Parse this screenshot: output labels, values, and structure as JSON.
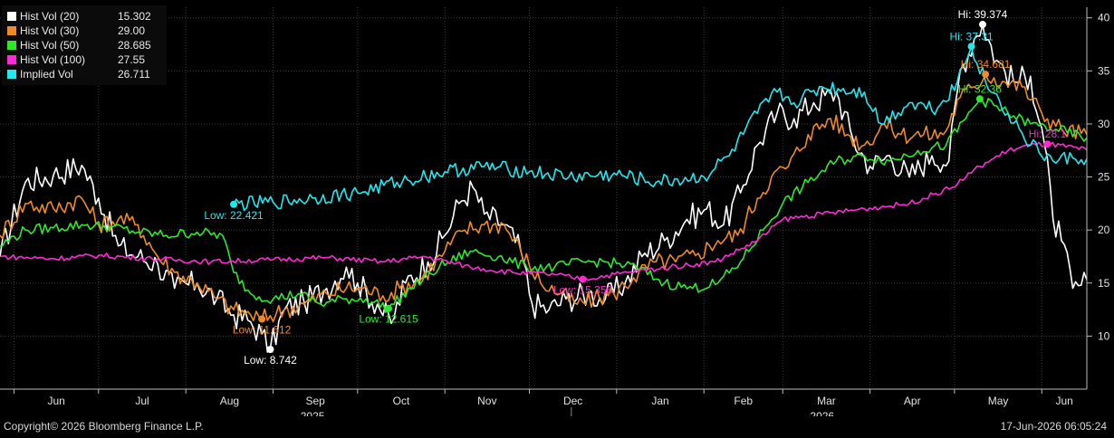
{
  "chart_data": {
    "type": "line",
    "title": "",
    "ylim": [
      5,
      41
    ],
    "yticks": [
      10,
      15,
      20,
      25,
      30,
      35,
      40
    ],
    "xrange": [
      "2025-05-27",
      "2026-06-17"
    ],
    "months": [
      {
        "label": "Jun",
        "date": "2025-06-01"
      },
      {
        "label": "Jul",
        "date": "2025-07-01"
      },
      {
        "label": "Aug",
        "date": "2025-08-01"
      },
      {
        "label": "Sep",
        "date": "2025-09-01"
      },
      {
        "label": "Oct",
        "date": "2025-10-01"
      },
      {
        "label": "Nov",
        "date": "2025-11-01"
      },
      {
        "label": "Dec",
        "date": "2025-12-01"
      },
      {
        "label": "Jan",
        "date": "2026-01-01"
      },
      {
        "label": "Feb",
        "date": "2026-02-01"
      },
      {
        "label": "Mar",
        "date": "2026-03-01"
      },
      {
        "label": "Apr",
        "date": "2026-04-01"
      },
      {
        "label": "May",
        "date": "2026-05-01"
      },
      {
        "label": "Jun",
        "date": "2026-06-01"
      }
    ],
    "years": [
      {
        "label": "2025",
        "date": "2025-09-15"
      },
      {
        "label": "2026",
        "date": "2026-03-15"
      }
    ],
    "grid": true,
    "legend_position": "top-left",
    "series": [
      {
        "name": "Hist Vol (20)",
        "last": "15.302",
        "color": "#ffffff",
        "points": [
          [
            "2025-05-27",
            17.5
          ],
          [
            "2025-06-05",
            24.5
          ],
          [
            "2025-06-15",
            25.2
          ],
          [
            "2025-06-25",
            26.1
          ],
          [
            "2025-07-01",
            23.0
          ],
          [
            "2025-07-08",
            18.5
          ],
          [
            "2025-07-15",
            17.5
          ],
          [
            "2025-07-22",
            16.8
          ],
          [
            "2025-07-28",
            14.5
          ],
          [
            "2025-08-05",
            15.0
          ],
          [
            "2025-08-12",
            13.5
          ],
          [
            "2025-08-18",
            12.0
          ],
          [
            "2025-08-23",
            11.5
          ],
          [
            "2025-08-28",
            10.2
          ],
          [
            "2025-08-31",
            8.742
          ],
          [
            "2025-09-05",
            12.5
          ],
          [
            "2025-09-12",
            13.2
          ],
          [
            "2025-09-20",
            14.5
          ],
          [
            "2025-09-27",
            16.5
          ],
          [
            "2025-10-01",
            15.0
          ],
          [
            "2025-10-08",
            13.0
          ],
          [
            "2025-10-13",
            11.2
          ],
          [
            "2025-10-18",
            15.0
          ],
          [
            "2025-10-26",
            17.0
          ],
          [
            "2025-11-01",
            19.5
          ],
          [
            "2025-11-06",
            22.5
          ],
          [
            "2025-11-11",
            24.0
          ],
          [
            "2025-11-15",
            21.5
          ],
          [
            "2025-11-22",
            20.5
          ],
          [
            "2025-11-28",
            18.0
          ],
          [
            "2025-12-02",
            13.0
          ],
          [
            "2025-12-08",
            12.5
          ],
          [
            "2025-12-14",
            13.5
          ],
          [
            "2025-12-22",
            14.0
          ],
          [
            "2025-12-28",
            13.5
          ],
          [
            "2026-01-04",
            15.0
          ],
          [
            "2026-01-10",
            17.5
          ],
          [
            "2026-01-18",
            19.0
          ],
          [
            "2026-01-26",
            21.0
          ],
          [
            "2026-02-02",
            22.0
          ],
          [
            "2026-02-08",
            20.5
          ],
          [
            "2026-02-14",
            23.5
          ],
          [
            "2026-02-20",
            28.0
          ],
          [
            "2026-02-27",
            31.0
          ],
          [
            "2026-03-05",
            30.5
          ],
          [
            "2026-03-12",
            32.0
          ],
          [
            "2026-03-20",
            33.0
          ],
          [
            "2026-03-26",
            28.5
          ],
          [
            "2026-04-01",
            26.0
          ],
          [
            "2026-04-08",
            27.0
          ],
          [
            "2026-04-15",
            25.0
          ],
          [
            "2026-04-23",
            27.0
          ],
          [
            "2026-04-29",
            26.5
          ],
          [
            "2026-05-03",
            35.0
          ],
          [
            "2026-05-08",
            38.0
          ],
          [
            "2026-05-11",
            39.374
          ],
          [
            "2026-05-16",
            36.0
          ],
          [
            "2026-05-22",
            34.0
          ],
          [
            "2026-05-28",
            34.5
          ],
          [
            "2026-06-02",
            28.0
          ],
          [
            "2026-06-05",
            21.0
          ],
          [
            "2026-06-08",
            19.0
          ],
          [
            "2026-06-12",
            14.5
          ],
          [
            "2026-06-15",
            14.8
          ],
          [
            "2026-06-17",
            15.302
          ]
        ]
      },
      {
        "name": "Hist Vol (30)",
        "last": "29.00",
        "color": "#f08a24",
        "points": [
          [
            "2025-05-27",
            19.5
          ],
          [
            "2025-06-05",
            22.5
          ],
          [
            "2025-06-15",
            22.0
          ],
          [
            "2025-06-25",
            23.0
          ],
          [
            "2025-07-01",
            20.5
          ],
          [
            "2025-07-08",
            21.0
          ],
          [
            "2025-07-15",
            20.5
          ],
          [
            "2025-07-22",
            17.5
          ],
          [
            "2025-07-28",
            16.0
          ],
          [
            "2025-08-05",
            15.0
          ],
          [
            "2025-08-12",
            13.5
          ],
          [
            "2025-08-18",
            12.5
          ],
          [
            "2025-08-24",
            12.0
          ],
          [
            "2025-08-28",
            11.612
          ],
          [
            "2025-09-05",
            12.5
          ],
          [
            "2025-09-12",
            13.0
          ],
          [
            "2025-09-20",
            14.0
          ],
          [
            "2025-09-27",
            14.5
          ],
          [
            "2025-10-03",
            14.5
          ],
          [
            "2025-10-10",
            13.8
          ],
          [
            "2025-10-16",
            14.5
          ],
          [
            "2025-10-24",
            15.5
          ],
          [
            "2025-11-01",
            18.0
          ],
          [
            "2025-11-08",
            20.0
          ],
          [
            "2025-11-15",
            20.5
          ],
          [
            "2025-11-22",
            20.5
          ],
          [
            "2025-11-28",
            18.0
          ],
          [
            "2025-12-05",
            15.0
          ],
          [
            "2025-12-12",
            14.0
          ],
          [
            "2025-12-18",
            13.0
          ],
          [
            "2025-12-24",
            13.5
          ],
          [
            "2025-12-31",
            14.0
          ],
          [
            "2026-01-07",
            15.5
          ],
          [
            "2026-01-15",
            17.0
          ],
          [
            "2026-01-22",
            17.0
          ],
          [
            "2026-01-30",
            17.8
          ],
          [
            "2026-02-06",
            19.0
          ],
          [
            "2026-02-13",
            19.5
          ],
          [
            "2026-02-20",
            23.0
          ],
          [
            "2026-02-25",
            25.0
          ],
          [
            "2026-03-03",
            26.0
          ],
          [
            "2026-03-10",
            29.0
          ],
          [
            "2026-03-18",
            30.5
          ],
          [
            "2026-03-24",
            29.0
          ],
          [
            "2026-03-30",
            28.0
          ],
          [
            "2026-04-06",
            30.0
          ],
          [
            "2026-04-12",
            29.0
          ],
          [
            "2026-04-20",
            29.0
          ],
          [
            "2026-04-27",
            29.0
          ],
          [
            "2026-05-03",
            32.5
          ],
          [
            "2026-05-08",
            33.5
          ],
          [
            "2026-05-12",
            34.681
          ],
          [
            "2026-05-18",
            34.0
          ],
          [
            "2026-05-25",
            33.5
          ],
          [
            "2026-06-01",
            31.0
          ],
          [
            "2026-06-08",
            29.5
          ],
          [
            "2026-06-17",
            29.0
          ]
        ]
      },
      {
        "name": "Hist Vol (50)",
        "last": "28.685",
        "color": "#2ee82e",
        "points": [
          [
            "2025-05-27",
            18.5
          ],
          [
            "2025-06-05",
            20.0
          ],
          [
            "2025-06-15",
            20.2
          ],
          [
            "2025-06-25",
            20.5
          ],
          [
            "2025-07-05",
            20.3
          ],
          [
            "2025-07-15",
            19.8
          ],
          [
            "2025-07-25",
            19.5
          ],
          [
            "2025-08-05",
            19.8
          ],
          [
            "2025-08-14",
            19.5
          ],
          [
            "2025-08-18",
            16.0
          ],
          [
            "2025-08-24",
            14.0
          ],
          [
            "2025-09-01",
            13.5
          ],
          [
            "2025-09-10",
            14.0
          ],
          [
            "2025-09-18",
            13.0
          ],
          [
            "2025-09-26",
            13.5
          ],
          [
            "2025-10-04",
            13.5
          ],
          [
            "2025-10-12",
            12.615
          ],
          [
            "2025-10-20",
            14.5
          ],
          [
            "2025-10-30",
            16.5
          ],
          [
            "2025-11-10",
            18.0
          ],
          [
            "2025-11-20",
            17.5
          ],
          [
            "2025-11-30",
            16.5
          ],
          [
            "2025-12-10",
            16.5
          ],
          [
            "2025-12-20",
            17.0
          ],
          [
            "2025-12-28",
            17.0
          ],
          [
            "2026-01-08",
            16.5
          ],
          [
            "2026-01-18",
            15.0
          ],
          [
            "2026-01-28",
            14.5
          ],
          [
            "2026-02-06",
            15.0
          ],
          [
            "2026-02-14",
            17.0
          ],
          [
            "2026-02-22",
            20.0
          ],
          [
            "2026-03-01",
            22.5
          ],
          [
            "2026-03-10",
            24.5
          ],
          [
            "2026-03-20",
            26.5
          ],
          [
            "2026-03-30",
            27.0
          ],
          [
            "2026-04-08",
            26.5
          ],
          [
            "2026-04-18",
            27.5
          ],
          [
            "2026-04-28",
            28.0
          ],
          [
            "2026-05-05",
            30.5
          ],
          [
            "2026-05-10",
            32.36
          ],
          [
            "2026-05-20",
            31.0
          ],
          [
            "2026-05-28",
            30.0
          ],
          [
            "2026-06-06",
            29.5
          ],
          [
            "2026-06-17",
            28.685
          ]
        ]
      },
      {
        "name": "Hist Vol (100)",
        "last": "27.55",
        "color": "#ff2ad4",
        "points": [
          [
            "2025-05-27",
            17.5
          ],
          [
            "2025-06-15",
            17.3
          ],
          [
            "2025-07-01",
            17.6
          ],
          [
            "2025-07-20",
            17.3
          ],
          [
            "2025-08-10",
            17.0
          ],
          [
            "2025-09-01",
            17.2
          ],
          [
            "2025-09-20",
            17.4
          ],
          [
            "2025-10-10",
            17.0
          ],
          [
            "2025-10-25",
            17.5
          ],
          [
            "2025-11-10",
            16.5
          ],
          [
            "2025-11-25",
            16.0
          ],
          [
            "2025-12-10",
            15.8
          ],
          [
            "2025-12-20",
            15.356
          ],
          [
            "2026-01-05",
            16.0
          ],
          [
            "2026-01-20",
            16.5
          ],
          [
            "2026-02-05",
            17.0
          ],
          [
            "2026-02-20",
            19.0
          ],
          [
            "2026-03-01",
            21.0
          ],
          [
            "2026-03-15",
            21.5
          ],
          [
            "2026-03-30",
            22.0
          ],
          [
            "2026-04-15",
            22.5
          ],
          [
            "2026-04-30",
            24.0
          ],
          [
            "2026-05-10",
            26.0
          ],
          [
            "2026-05-20",
            27.5
          ],
          [
            "2026-05-28",
            28.0
          ],
          [
            "2026-06-03",
            28.1
          ],
          [
            "2026-06-17",
            27.55
          ]
        ]
      },
      {
        "name": "Implied Vol",
        "last": "26.711",
        "color": "#22e8ee",
        "points": [
          [
            "2025-08-18",
            22.421
          ],
          [
            "2025-09-01",
            22.6
          ],
          [
            "2025-09-15",
            23.0
          ],
          [
            "2025-10-01",
            23.5
          ],
          [
            "2025-10-15",
            24.5
          ],
          [
            "2025-11-01",
            25.5
          ],
          [
            "2025-11-15",
            26.0
          ],
          [
            "2025-12-01",
            25.5
          ],
          [
            "2025-12-15",
            25.0
          ],
          [
            "2026-01-01",
            25.2
          ],
          [
            "2026-01-15",
            24.5
          ],
          [
            "2026-02-01",
            25.0
          ],
          [
            "2026-02-10",
            27.0
          ],
          [
            "2026-02-20",
            31.0
          ],
          [
            "2026-02-27",
            33.0
          ],
          [
            "2026-03-05",
            32.0
          ],
          [
            "2026-03-15",
            33.5
          ],
          [
            "2026-03-30",
            33.0
          ],
          [
            "2026-04-05",
            30.0
          ],
          [
            "2026-04-15",
            32.0
          ],
          [
            "2026-04-25",
            31.5
          ],
          [
            "2026-05-02",
            34.0
          ],
          [
            "2026-05-07",
            37.31
          ],
          [
            "2026-05-12",
            34.0
          ],
          [
            "2026-05-20",
            31.0
          ],
          [
            "2026-05-28",
            28.0
          ],
          [
            "2026-06-05",
            26.5
          ],
          [
            "2026-06-12",
            26.8
          ],
          [
            "2026-06-17",
            26.711
          ]
        ]
      }
    ],
    "annotations": [
      {
        "text": "Hi: 39.374",
        "series": 0,
        "date": "2026-05-11",
        "value": 39.374,
        "label_pos": "above",
        "text_color": "#ffffff"
      },
      {
        "text": "Low: 8.742",
        "series": 0,
        "date": "2025-08-31",
        "value": 8.742,
        "label_pos": "below",
        "text_color": "#ffffff"
      },
      {
        "text": "Hi: 34.681",
        "series": 1,
        "date": "2026-05-12",
        "value": 34.681,
        "label_pos": "above",
        "text_color": "#f08a24"
      },
      {
        "text": "Low: 11.612",
        "series": 1,
        "date": "2025-08-28",
        "value": 11.612,
        "label_pos": "below",
        "text_color": "#f08a24"
      },
      {
        "text": "Hi: 32.36",
        "series": 2,
        "date": "2026-05-10",
        "value": 32.36,
        "label_pos": "above",
        "text_color": "#2ee82e"
      },
      {
        "text": "Low: 12.615",
        "series": 2,
        "date": "2025-10-12",
        "value": 12.615,
        "label_pos": "below",
        "text_color": "#2ee82e"
      },
      {
        "text": "Hi: 28.1",
        "series": 3,
        "date": "2026-06-03",
        "value": 28.1,
        "label_pos": "above",
        "text_color": "#ff2ad4"
      },
      {
        "text": "Low: 15.356",
        "series": 3,
        "date": "2025-12-20",
        "value": 15.356,
        "label_pos": "below",
        "text_color": "#ff2ad4"
      },
      {
        "text": "Hi: 37.31",
        "series": 4,
        "date": "2026-05-07",
        "value": 37.31,
        "label_pos": "above",
        "text_color": "#22e8ee"
      },
      {
        "text": "Low: 22.421",
        "series": 4,
        "date": "2025-08-18",
        "value": 22.421,
        "label_pos": "below",
        "text_color": "#22e8ee"
      }
    ]
  },
  "footer": {
    "copyright": "Copyright© 2026 Bloomberg Finance L.P.",
    "timestamp": "17-Jun-2026 06:05:24"
  },
  "colors": {
    "background": "#000000",
    "grid": "#3a3a3a",
    "axis_text": "#e0e0e0"
  }
}
